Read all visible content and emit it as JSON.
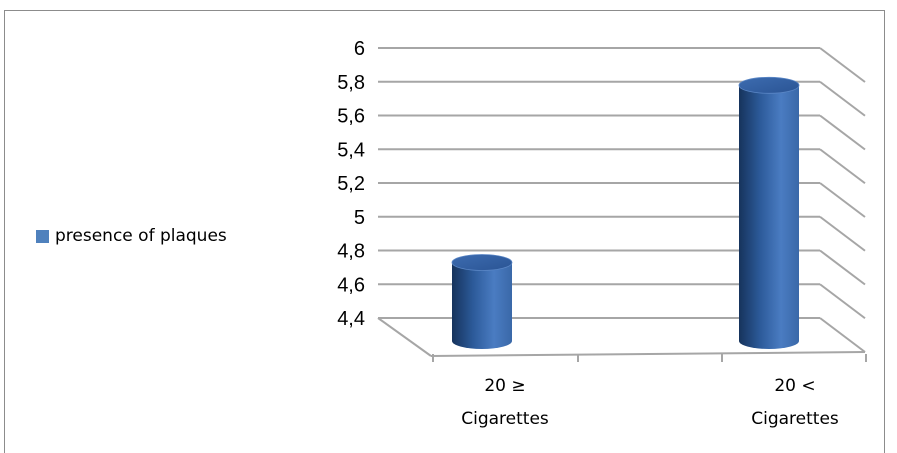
{
  "chart_data": {
    "type": "bar",
    "categories": [
      "20 ≥ Cigarettes",
      "20 < Cigarettes"
    ],
    "category_lines": [
      [
        "20 ≥",
        "Cigarettes"
      ],
      [
        "20 <",
        "Cigarettes"
      ]
    ],
    "series": [
      {
        "name": "presence of plaques",
        "values": [
          4.8,
          5.85
        ],
        "color": "#4F81BD"
      }
    ],
    "ylim": [
      4.4,
      6
    ],
    "yticks": [
      "4,4",
      "4,6",
      "4,8",
      "5",
      "5,2",
      "5,4",
      "5,6",
      "5,8",
      "6"
    ],
    "title": "",
    "xlabel": "",
    "ylabel": "",
    "grid": true,
    "legend_position": "left",
    "style": "3d-cylinder"
  }
}
